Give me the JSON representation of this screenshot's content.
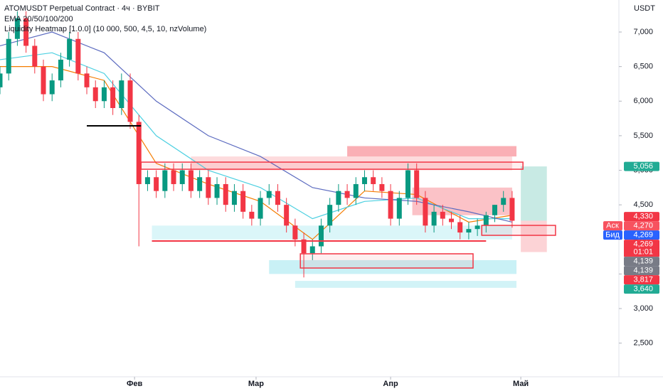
{
  "chart_data": {
    "type": "candlestick",
    "title": "ATOMUSDT Perpetual Contract · 4ч · BYBIT",
    "subtitle": "EMA 20/50/100/200",
    "indicator": "Liquidity Heatmap [1.0.0] (10 000, 500, 4,5, 10, nzVolume)",
    "currency": "USDT",
    "up_color": "#089981",
    "down_color": "#f23645",
    "xlim": [
      0,
      142.6
    ],
    "ylim": [
      2013,
      7463
    ],
    "xticks": [
      {
        "value": 31,
        "label": "Фев"
      },
      {
        "value": 59,
        "label": "Мар"
      },
      {
        "value": 90,
        "label": "Апр"
      },
      {
        "value": 120,
        "label": "Май"
      }
    ],
    "yticks": [
      {
        "value": 2500,
        "label": "2,500"
      },
      {
        "value": 3000,
        "label": "3,000"
      },
      {
        "value": 3500,
        "label": "3,500"
      },
      {
        "value": 4000,
        "label": "4,000"
      },
      {
        "value": 4500,
        "label": "4,500"
      },
      {
        "value": 5000,
        "label": "5,000"
      },
      {
        "value": 5500,
        "label": "5,500"
      },
      {
        "value": 6000,
        "label": "6,000"
      },
      {
        "value": 6500,
        "label": "6,500"
      },
      {
        "value": 7000,
        "label": "7,000"
      }
    ],
    "grid": false,
    "x": [
      0,
      2,
      4,
      6,
      8,
      10,
      12,
      14,
      16,
      18,
      20,
      22,
      24,
      26,
      28,
      30,
      32,
      34,
      36,
      38,
      40,
      42,
      44,
      46,
      48,
      50,
      52,
      54,
      56,
      58,
      60,
      62,
      64,
      66,
      68,
      70,
      72,
      74,
      76,
      78,
      80,
      82,
      84,
      86,
      88,
      90,
      92,
      94,
      96,
      98,
      100,
      102,
      104,
      106,
      108,
      110,
      112,
      114,
      116,
      118
    ],
    "open": [
      6200,
      6400,
      6900,
      7200,
      6800,
      6500,
      6100,
      6300,
      6600,
      6900,
      6400,
      6200,
      6000,
      6200,
      5900,
      6300,
      5700,
      4800,
      4900,
      4700,
      5000,
      4800,
      5000,
      4700,
      4900,
      4600,
      4800,
      4500,
      4700,
      4400,
      4300,
      4600,
      4700,
      4500,
      4200,
      4000,
      3800,
      3900,
      4200,
      4500,
      4700,
      4600,
      4800,
      4900,
      4800,
      4700,
      4300,
      4600,
      5000,
      4600,
      4200,
      4400,
      4300,
      4250,
      4100,
      4150,
      4200,
      4350,
      4500,
      4600
    ],
    "high": [
      6500,
      7000,
      7300,
      7300,
      6900,
      6600,
      6400,
      6700,
      7000,
      7000,
      6500,
      6300,
      6300,
      6300,
      6400,
      6400,
      5800,
      5000,
      5000,
      5100,
      5100,
      5100,
      5100,
      5000,
      5000,
      4900,
      4900,
      4800,
      4800,
      4500,
      4700,
      4800,
      4800,
      4600,
      4300,
      4100,
      4000,
      4300,
      4600,
      4800,
      4800,
      4900,
      5000,
      5000,
      4900,
      4800,
      4700,
      5100,
      5100,
      4700,
      4500,
      4500,
      4400,
      4350,
      4250,
      4300,
      4400,
      4500,
      4700,
      4700
    ],
    "low": [
      6100,
      6300,
      6800,
      6700,
      6400,
      6000,
      6000,
      6200,
      6500,
      6300,
      6100,
      5900,
      5900,
      5800,
      5800,
      5600,
      3900,
      4700,
      4600,
      4600,
      4700,
      4700,
      4600,
      4600,
      4500,
      4500,
      4400,
      4400,
      4300,
      4200,
      4200,
      4500,
      4400,
      4100,
      3900,
      3450,
      3700,
      3800,
      4100,
      4400,
      4500,
      4500,
      4700,
      4700,
      4600,
      4200,
      4200,
      4500,
      4500,
      4100,
      4100,
      4200,
      4150,
      4000,
      4000,
      4050,
      4100,
      4250,
      4400,
      4170
    ],
    "close": [
      6400,
      6900,
      7200,
      6800,
      6500,
      6100,
      6300,
      6600,
      6900,
      6400,
      6200,
      6000,
      6200,
      5900,
      6300,
      5700,
      4800,
      4900,
      4700,
      5000,
      4800,
      5000,
      4700,
      4900,
      4600,
      4800,
      4500,
      4700,
      4400,
      4300,
      4600,
      4700,
      4500,
      4200,
      4000,
      3800,
      3900,
      4200,
      4500,
      4700,
      4600,
      4800,
      4900,
      4800,
      4700,
      4300,
      4600,
      5000,
      4600,
      4200,
      4400,
      4300,
      4250,
      4100,
      4150,
      4200,
      4350,
      4500,
      4600,
      4270
    ],
    "ema_x": [
      0,
      12,
      24,
      36,
      48,
      60,
      72,
      84,
      96,
      108,
      118
    ],
    "emas": [
      {
        "color": "#f57c00",
        "values": [
          6500,
          6500,
          6300,
          5100,
          4800,
          4550,
          4000,
          4700,
          4650,
          4250,
          4350
        ]
      },
      {
        "color": "#4dd0e1",
        "values": [
          6600,
          6700,
          6400,
          5500,
          5000,
          4750,
          4300,
          4550,
          4600,
          4300,
          4300
        ]
      },
      {
        "color": "#5c6bc0",
        "values": [
          6800,
          7000,
          6700,
          6000,
          5500,
          5200,
          4750,
          4600,
          4550,
          4400,
          4250
        ]
      }
    ],
    "zones": [
      {
        "x0": 44,
        "x1": 118,
        "y0": 5000,
        "y1": 5200,
        "color": "rgba(242,54,69,0.18)"
      },
      {
        "x0": 80,
        "x1": 119,
        "y0": 5200,
        "y1": 5350,
        "color": "rgba(242,54,69,0.4)"
      },
      {
        "x0": 95,
        "x1": 118,
        "y0": 4350,
        "y1": 4750,
        "color": "rgba(242,54,69,0.3)"
      },
      {
        "x0": 35,
        "x1": 118,
        "y0": 4000,
        "y1": 4200,
        "color": "rgba(77,208,225,0.2)"
      },
      {
        "x0": 62,
        "x1": 119,
        "y0": 3500,
        "y1": 3700,
        "color": "rgba(77,208,225,0.3)"
      },
      {
        "x0": 68,
        "x1": 119,
        "y0": 3300,
        "y1": 3400,
        "color": "rgba(77,208,225,0.25)"
      }
    ],
    "boxes": [
      {
        "x0": 32.5,
        "x1": 120.5,
        "y0": 5015,
        "y1": 5118
      },
      {
        "x0": 69.2,
        "x1": 109,
        "y0": 3586,
        "y1": 3792
      },
      {
        "x0": 111,
        "x1": 128,
        "y0": 4059,
        "y1": 4203
      }
    ],
    "lines": [
      {
        "x0": 20,
        "x1": 32.5,
        "y": 5643,
        "color": "#000000"
      },
      {
        "x0": 35,
        "x1": 112,
        "y": 3977,
        "color": "#f23645"
      }
    ],
    "position": {
      "x0": 120,
      "x1": 126,
      "entry": 4270,
      "target": 5056,
      "stop": 3817
    },
    "price_labels": [
      {
        "value": 5056,
        "label": "5,056",
        "color": "#22ab94"
      },
      {
        "value": 4330,
        "label": "4,330",
        "color": "#f23645"
      },
      {
        "value": 4270,
        "label": "4,270",
        "color": "#f7525f",
        "tag": "Аск"
      },
      {
        "value": 4269,
        "label": "4,269",
        "color": "#2962ff",
        "tag": "Бид"
      },
      {
        "value": 4269,
        "label": "4,269",
        "color": "#f23645"
      },
      {
        "value": 4139,
        "label": "4,139",
        "color": "#787b86"
      },
      {
        "value": 4139,
        "label": "4,139",
        "color": "#787b86"
      },
      {
        "value": 3817,
        "label": "3,817",
        "color": "#f23645"
      },
      {
        "value": 3640,
        "label": "3,640",
        "color": "#22ab94"
      }
    ],
    "countdown": "01:01"
  }
}
